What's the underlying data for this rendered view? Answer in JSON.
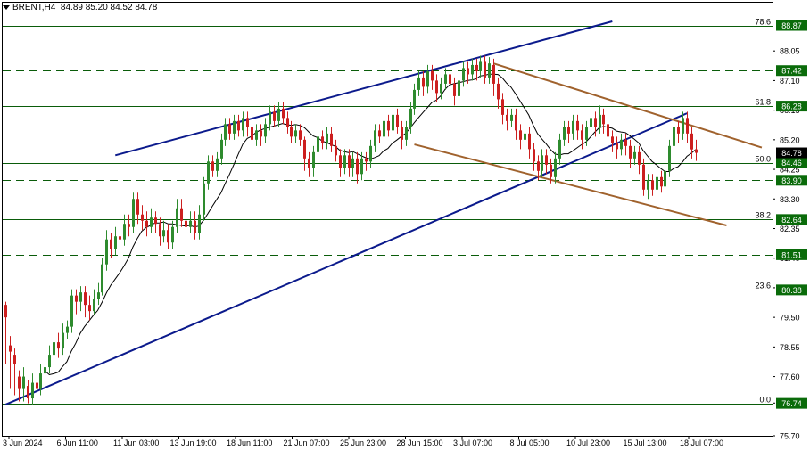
{
  "header": {
    "symbol_label": "BRENT,H4",
    "ohlc": "84.89 85.20 84.52 84.78"
  },
  "colors": {
    "bull": "#2e8b2e",
    "bear": "#cc1f1f",
    "ma": "#000000",
    "channel_blue": "#0b1a8c",
    "channel_brown": "#a0622d",
    "fib_line": "#0a5c0a",
    "fib_tag": "#0a6b0a",
    "price_tag": "#000000",
    "grid": "#000000"
  },
  "chart_data": {
    "type": "candlestick",
    "title": "",
    "xlabel": "",
    "ylabel": "",
    "ylim": [
      75.7,
      89.6
    ],
    "y_ticks": [
      75.7,
      76.75,
      77.6,
      78.55,
      79.5,
      80.45,
      81.4,
      82.35,
      83.3,
      84.25,
      85.2,
      86.15,
      87.1,
      88.05
    ],
    "x_ticks": [
      "3 Jun 2024",
      "6 Jun 11:00",
      "11 Jun 03:00",
      "13 Jun 19:00",
      "18 Jun 11:00",
      "21 Jun 07:00",
      "25 Jun 23:00",
      "28 Jun 15:00",
      "3 Jul 07:00",
      "8 Jul 05:00",
      "10 Jul 23:00",
      "15 Jul 13:00",
      "18 Jul 07:00"
    ],
    "fib_levels": [
      {
        "ratio": "78.6",
        "price": 88.87,
        "style": "solid"
      },
      {
        "ratio": "",
        "price": 87.42,
        "style": "dashed"
      },
      {
        "ratio": "61.8",
        "price": 86.28,
        "style": "solid"
      },
      {
        "ratio": "50.0",
        "price": 84.46,
        "style": "solid"
      },
      {
        "ratio": "",
        "price": 83.9,
        "style": "dashed"
      },
      {
        "ratio": "38.2",
        "price": 82.64,
        "style": "solid"
      },
      {
        "ratio": "",
        "price": 81.51,
        "style": "dashed"
      },
      {
        "ratio": "23.6",
        "price": 80.38,
        "style": "solid"
      },
      {
        "ratio": "0.0",
        "price": 76.74,
        "style": "solid"
      }
    ],
    "current_price": 84.78,
    "trendlines": [
      {
        "name": "upper-blue",
        "color": "blue",
        "from": {
          "i": 25,
          "price": 84.7
        },
        "to": {
          "i": 138,
          "price": 89.0
        }
      },
      {
        "name": "lower-blue",
        "color": "blue",
        "from": {
          "i": 0,
          "price": 76.7
        },
        "to": {
          "i": 155,
          "price": 86.05
        }
      },
      {
        "name": "upper-brown",
        "color": "brown",
        "from": {
          "i": 111,
          "price": 87.65
        },
        "to": {
          "i": 172,
          "price": 84.95
        }
      },
      {
        "name": "lower-brown",
        "color": "brown",
        "from": {
          "i": 93,
          "price": 85.05
        },
        "to": {
          "i": 164,
          "price": 82.45
        }
      }
    ],
    "ma_period": 10,
    "candles": [
      [
        79.9,
        79.5,
        80.0,
        78.0
      ],
      [
        78.6,
        78.4,
        78.9,
        77.2
      ],
      [
        78.3,
        78.0,
        78.5,
        77.0
      ],
      [
        77.6,
        77.2,
        77.8,
        76.8
      ],
      [
        77.2,
        77.6,
        77.9,
        76.8
      ],
      [
        77.3,
        76.9,
        77.5,
        76.74
      ],
      [
        76.9,
        77.4,
        77.7,
        76.7
      ],
      [
        77.4,
        77.2,
        77.7,
        76.9
      ],
      [
        77.2,
        77.7,
        78.0,
        77.0
      ],
      [
        77.7,
        77.9,
        78.2,
        77.5
      ],
      [
        77.9,
        78.3,
        78.6,
        77.7
      ],
      [
        78.3,
        78.7,
        79.0,
        78.1
      ],
      [
        78.7,
        78.5,
        79.0,
        78.2
      ],
      [
        78.5,
        79.0,
        79.3,
        78.3
      ],
      [
        79.0,
        79.2,
        79.4,
        78.8
      ],
      [
        79.2,
        80.2,
        80.4,
        79.0
      ],
      [
        80.2,
        80.0,
        80.4,
        79.6
      ],
      [
        80.0,
        80.3,
        80.5,
        79.7
      ],
      [
        80.3,
        79.9,
        80.5,
        79.5
      ],
      [
        79.9,
        79.7,
        80.2,
        79.4
      ],
      [
        79.7,
        80.1,
        80.4,
        79.6
      ],
      [
        80.1,
        80.3,
        80.6,
        79.9
      ],
      [
        80.3,
        81.2,
        81.4,
        80.2
      ],
      [
        81.2,
        82.0,
        82.3,
        81.0
      ],
      [
        82.0,
        81.7,
        82.2,
        81.4
      ],
      [
        81.7,
        82.1,
        82.4,
        81.5
      ],
      [
        82.1,
        82.0,
        82.4,
        81.7
      ],
      [
        82.0,
        82.5,
        82.8,
        81.8
      ],
      [
        82.5,
        82.4,
        82.8,
        82.1
      ],
      [
        82.4,
        83.3,
        83.5,
        82.2
      ],
      [
        83.3,
        82.8,
        83.5,
        82.5
      ],
      [
        82.8,
        82.6,
        83.1,
        82.3
      ],
      [
        82.6,
        82.4,
        82.9,
        82.1
      ],
      [
        82.4,
        82.7,
        83.0,
        82.2
      ],
      [
        82.7,
        82.5,
        82.9,
        82.2
      ],
      [
        82.5,
        82.1,
        82.7,
        81.8
      ],
      [
        82.1,
        82.3,
        82.6,
        81.9
      ],
      [
        82.3,
        81.9,
        82.5,
        81.7
      ],
      [
        81.9,
        82.4,
        82.6,
        81.7
      ],
      [
        82.4,
        83.0,
        83.3,
        82.2
      ],
      [
        83.0,
        82.6,
        83.3,
        82.4
      ],
      [
        82.6,
        82.4,
        82.8,
        82.1
      ],
      [
        82.4,
        82.6,
        82.9,
        82.2
      ],
      [
        82.6,
        82.2,
        82.9,
        82.0
      ],
      [
        82.2,
        82.8,
        83.1,
        82.0
      ],
      [
        82.8,
        83.8,
        84.0,
        82.6
      ],
      [
        83.8,
        84.5,
        84.7,
        83.6
      ],
      [
        84.5,
        84.2,
        84.7,
        84.0
      ],
      [
        84.2,
        84.6,
        84.8,
        84.0
      ],
      [
        84.6,
        85.2,
        85.4,
        84.4
      ],
      [
        85.2,
        85.7,
        85.9,
        85.0
      ],
      [
        85.7,
        85.4,
        85.9,
        85.2
      ],
      [
        85.4,
        85.8,
        86.0,
        85.2
      ],
      [
        85.8,
        85.5,
        86.0,
        85.3
      ],
      [
        85.5,
        85.9,
        86.1,
        85.3
      ],
      [
        85.9,
        85.6,
        86.1,
        85.3
      ],
      [
        85.6,
        85.2,
        85.8,
        85.0
      ],
      [
        85.2,
        85.5,
        85.7,
        85.0
      ],
      [
        85.5,
        85.3,
        85.7,
        85.0
      ],
      [
        85.3,
        85.7,
        85.9,
        85.1
      ],
      [
        85.7,
        86.1,
        86.3,
        85.5
      ],
      [
        86.1,
        85.8,
        86.3,
        85.6
      ],
      [
        85.8,
        86.2,
        86.4,
        85.6
      ],
      [
        86.2,
        85.9,
        86.4,
        85.7
      ],
      [
        85.9,
        85.6,
        86.1,
        85.4
      ],
      [
        85.6,
        85.3,
        85.8,
        85.1
      ],
      [
        85.3,
        85.5,
        85.7,
        85.1
      ],
      [
        85.5,
        85.2,
        85.7,
        85.0
      ],
      [
        85.2,
        84.6,
        85.3,
        84.2
      ],
      [
        84.6,
        84.3,
        84.8,
        84.0
      ],
      [
        84.3,
        84.8,
        85.0,
        84.0
      ],
      [
        84.8,
        85.3,
        85.5,
        84.6
      ],
      [
        85.3,
        85.1,
        85.5,
        84.9
      ],
      [
        85.1,
        85.4,
        85.6,
        84.9
      ],
      [
        85.4,
        85.0,
        85.6,
        84.8
      ],
      [
        85.0,
        84.7,
        85.2,
        84.5
      ],
      [
        84.7,
        84.3,
        84.9,
        84.0
      ],
      [
        84.3,
        84.7,
        84.9,
        84.1
      ],
      [
        84.7,
        84.3,
        84.9,
        84.0
      ],
      [
        84.3,
        84.6,
        84.8,
        84.0
      ],
      [
        84.6,
        84.1,
        84.8,
        83.8
      ],
      [
        84.1,
        84.6,
        84.8,
        83.9
      ],
      [
        84.6,
        84.5,
        84.8,
        84.2
      ],
      [
        84.5,
        85.0,
        85.2,
        84.3
      ],
      [
        85.0,
        85.5,
        85.7,
        84.8
      ],
      [
        85.5,
        85.3,
        85.7,
        85.1
      ],
      [
        85.3,
        85.8,
        86.0,
        85.1
      ],
      [
        85.8,
        85.5,
        86.0,
        85.3
      ],
      [
        85.5,
        86.0,
        86.2,
        85.3
      ],
      [
        86.0,
        85.6,
        86.2,
        85.4
      ],
      [
        85.6,
        85.2,
        85.8,
        84.9
      ],
      [
        85.2,
        85.6,
        85.8,
        85.0
      ],
      [
        85.6,
        86.2,
        86.4,
        85.4
      ],
      [
        86.2,
        86.8,
        87.0,
        86.0
      ],
      [
        86.8,
        87.2,
        87.4,
        86.6
      ],
      [
        87.2,
        86.9,
        87.4,
        86.6
      ],
      [
        86.9,
        87.4,
        87.6,
        86.7
      ],
      [
        87.4,
        87.1,
        87.6,
        86.8
      ],
      [
        87.1,
        86.7,
        87.3,
        86.4
      ],
      [
        86.7,
        87.0,
        87.2,
        86.5
      ],
      [
        87.0,
        87.3,
        87.5,
        86.8
      ],
      [
        87.3,
        87.0,
        87.5,
        86.7
      ],
      [
        87.0,
        86.6,
        87.2,
        86.3
      ],
      [
        86.6,
        87.1,
        87.3,
        86.4
      ],
      [
        87.1,
        87.5,
        87.7,
        86.9
      ],
      [
        87.5,
        87.3,
        87.7,
        87.0
      ],
      [
        87.3,
        87.6,
        87.8,
        87.1
      ],
      [
        87.6,
        87.4,
        87.8,
        87.1
      ],
      [
        87.4,
        87.7,
        87.9,
        87.2
      ],
      [
        87.7,
        87.2,
        87.9,
        87.0
      ],
      [
        87.2,
        87.65,
        87.85,
        87.0
      ],
      [
        87.6,
        87.0,
        87.8,
        86.6
      ],
      [
        87.0,
        86.5,
        87.2,
        86.2
      ],
      [
        86.5,
        86.0,
        86.7,
        85.7
      ],
      [
        86.0,
        85.8,
        86.2,
        85.5
      ],
      [
        85.8,
        86.0,
        86.2,
        85.6
      ],
      [
        86.0,
        85.5,
        86.2,
        85.2
      ],
      [
        85.5,
        85.2,
        85.7,
        84.9
      ],
      [
        85.2,
        85.4,
        85.6,
        85.0
      ],
      [
        85.4,
        84.9,
        85.6,
        84.6
      ],
      [
        84.9,
        84.5,
        85.1,
        84.2
      ],
      [
        84.5,
        84.2,
        84.7,
        83.9
      ],
      [
        84.2,
        84.7,
        84.9,
        84.0
      ],
      [
        84.7,
        84.4,
        84.9,
        84.1
      ],
      [
        84.4,
        84.0,
        84.6,
        83.8
      ],
      [
        84.0,
        84.6,
        84.8,
        83.8
      ],
      [
        84.6,
        85.2,
        85.4,
        84.4
      ],
      [
        85.2,
        85.6,
        85.8,
        85.0
      ],
      [
        85.6,
        85.4,
        85.8,
        85.1
      ],
      [
        85.4,
        85.8,
        86.0,
        85.2
      ],
      [
        85.8,
        85.5,
        86.0,
        85.2
      ],
      [
        85.5,
        85.2,
        85.7,
        84.9
      ],
      [
        85.2,
        85.6,
        85.8,
        85.0
      ],
      [
        85.6,
        85.9,
        86.1,
        85.4
      ],
      [
        85.9,
        85.6,
        86.1,
        85.3
      ],
      [
        85.6,
        86.0,
        86.3,
        85.4
      ],
      [
        86.0,
        85.7,
        86.2,
        85.4
      ],
      [
        85.7,
        85.3,
        85.9,
        85.0
      ],
      [
        85.3,
        85.1,
        85.5,
        84.8
      ],
      [
        85.1,
        84.9,
        85.3,
        84.6
      ],
      [
        84.9,
        85.2,
        85.4,
        84.7
      ],
      [
        85.2,
        85.0,
        85.4,
        84.7
      ],
      [
        85.0,
        84.6,
        85.2,
        84.3
      ],
      [
        84.6,
        84.8,
        85.0,
        84.4
      ],
      [
        84.8,
        84.4,
        85.0,
        84.1
      ],
      [
        84.4,
        83.6,
        84.6,
        83.4
      ],
      [
        83.6,
        83.9,
        84.1,
        83.3
      ],
      [
        83.9,
        83.6,
        84.1,
        83.4
      ],
      [
        83.6,
        84.0,
        84.2,
        83.5
      ],
      [
        84.0,
        83.7,
        84.2,
        83.5
      ],
      [
        83.7,
        84.2,
        84.4,
        83.6
      ],
      [
        84.2,
        85.0,
        85.2,
        84.0
      ],
      [
        85.0,
        85.6,
        85.8,
        84.8
      ],
      [
        85.6,
        85.4,
        85.8,
        85.1
      ],
      [
        85.4,
        85.9,
        86.1,
        85.2
      ],
      [
        85.9,
        85.4,
        86.1,
        85.1
      ],
      [
        85.4,
        84.89,
        85.6,
        84.6
      ],
      [
        84.89,
        84.78,
        85.2,
        84.52
      ]
    ]
  }
}
